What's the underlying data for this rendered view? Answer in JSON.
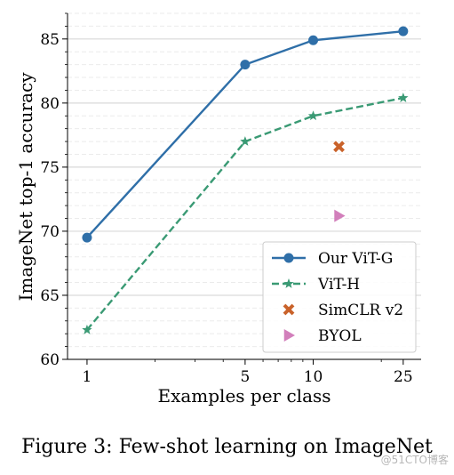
{
  "caption": "Figure 3: Few-shot learning on ImageNet",
  "watermark": "@51CTO博客",
  "chart_data": {
    "type": "line",
    "xlabel": "Examples per class",
    "ylabel": "ImageNet top-1 accuracy",
    "xscale": "log",
    "xlim": [
      0.82,
      30
    ],
    "ylim": [
      60,
      87
    ],
    "xticks": [
      1,
      5,
      10,
      25
    ],
    "yticks": [
      60,
      65,
      70,
      75,
      80,
      85
    ],
    "grid": true,
    "legend_position": "lower-right",
    "series": [
      {
        "name": "Our ViT-G",
        "style": "solid",
        "marker": "circle",
        "color": "#2f6fa8",
        "x": [
          1,
          5,
          10,
          25
        ],
        "y": [
          69.5,
          83.0,
          84.9,
          85.6
        ]
      },
      {
        "name": "ViT-H",
        "style": "dashed",
        "marker": "star",
        "color": "#3a9a74",
        "x": [
          1,
          5,
          10,
          25
        ],
        "y": [
          62.3,
          77.0,
          79.0,
          80.4
        ]
      },
      {
        "name": "SimCLR v2",
        "style": "none",
        "marker": "x",
        "color": "#c9622a",
        "x": [
          13
        ],
        "y": [
          76.6
        ]
      },
      {
        "name": "BYOL",
        "style": "none",
        "marker": "triangle-right",
        "color": "#d27fbb",
        "x": [
          13
        ],
        "y": [
          71.2
        ]
      }
    ]
  }
}
